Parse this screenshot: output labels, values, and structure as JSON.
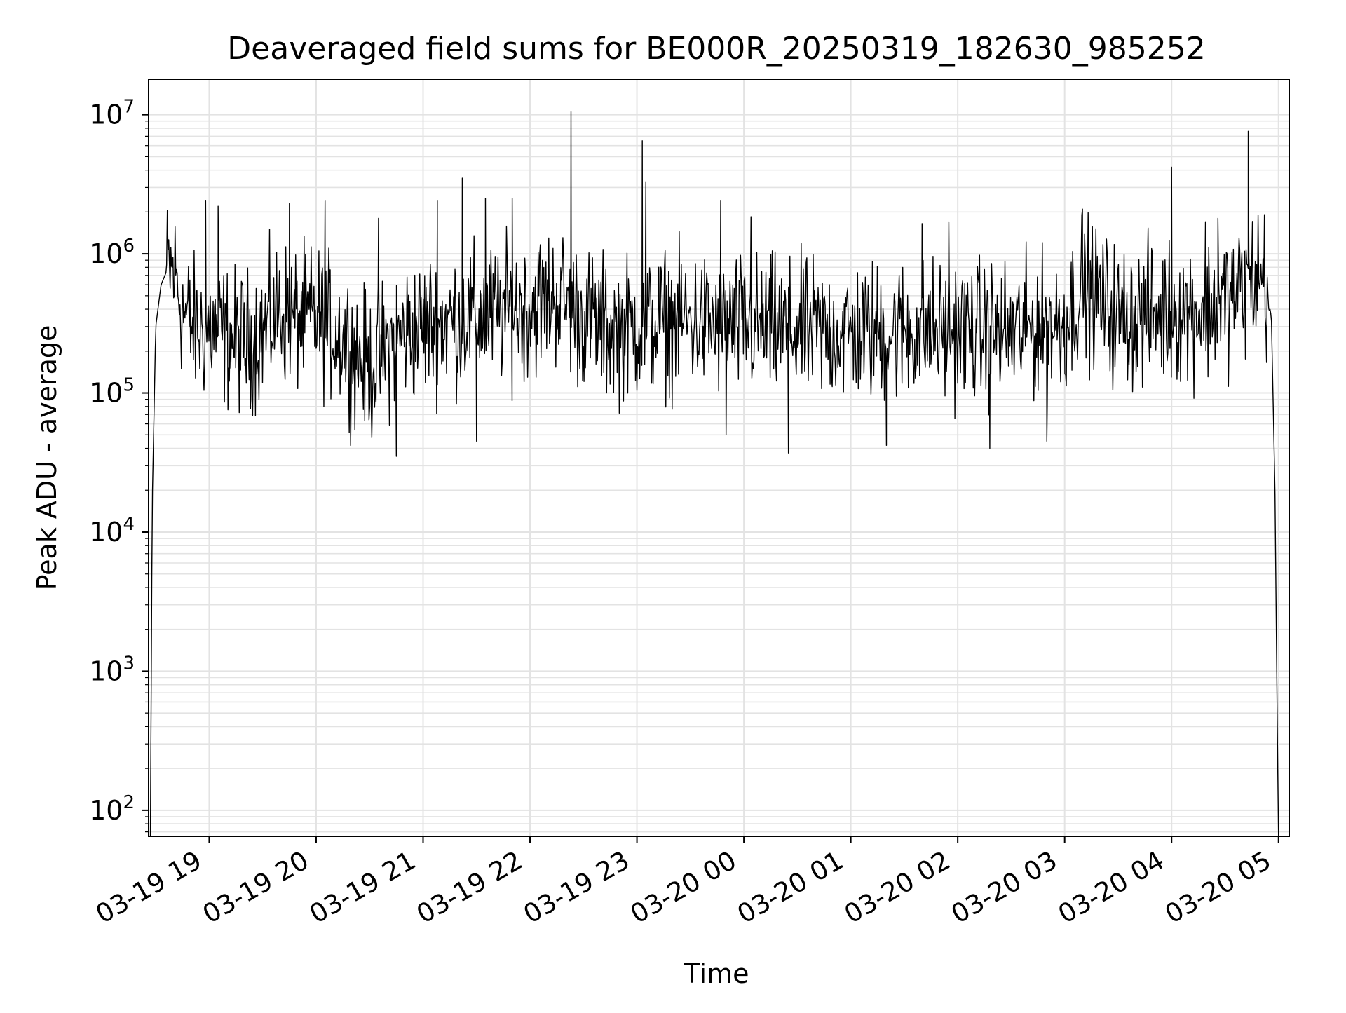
{
  "chart_data": {
    "type": "line",
    "title": "Deaveraged field sums for BE000R_20250319_182630_985252",
    "xlabel": "Time",
    "ylabel": "Peak ADU - average",
    "yscale": "log",
    "ylim": [
      65,
      18000000
    ],
    "xlim": [
      "2025-03-19 18:26",
      "2025-03-20 05:06"
    ],
    "grid": true,
    "line_color": "#000000",
    "x_ticks": [
      {
        "time": "2025-03-19 19:00",
        "label": "03-19 19"
      },
      {
        "time": "2025-03-19 20:00",
        "label": "03-19 20"
      },
      {
        "time": "2025-03-19 21:00",
        "label": "03-19 21"
      },
      {
        "time": "2025-03-19 22:00",
        "label": "03-19 22"
      },
      {
        "time": "2025-03-19 23:00",
        "label": "03-19 23"
      },
      {
        "time": "2025-03-20 00:00",
        "label": "03-20 00"
      },
      {
        "time": "2025-03-20 01:00",
        "label": "03-20 01"
      },
      {
        "time": "2025-03-20 02:00",
        "label": "03-20 02"
      },
      {
        "time": "2025-03-20 03:00",
        "label": "03-20 03"
      },
      {
        "time": "2025-03-20 04:00",
        "label": "03-20 04"
      },
      {
        "time": "2025-03-20 05:00",
        "label": "03-20 05"
      }
    ],
    "y_ticks": [
      {
        "value": 100,
        "base": "10",
        "exp": "2"
      },
      {
        "value": 1000,
        "base": "10",
        "exp": "3"
      },
      {
        "value": 10000,
        "base": "10",
        "exp": "4"
      },
      {
        "value": 100000,
        "base": "10",
        "exp": "5"
      },
      {
        "value": 1000000,
        "base": "10",
        "exp": "6"
      },
      {
        "value": 10000000,
        "base": "10",
        "exp": "7"
      }
    ],
    "series": [
      {
        "x": [
          "2025-03-19 18:27",
          "2025-03-19 18:28",
          "2025-03-19 18:30",
          "2025-03-19 18:33",
          "2025-03-19 18:37",
          "2025-03-19 18:41",
          "2025-03-19 18:45",
          "2025-03-19 18:50",
          "2025-03-19 18:55",
          "2025-03-19 19:00",
          "2025-03-19 19:10",
          "2025-03-19 19:20",
          "2025-03-19 19:30",
          "2025-03-19 19:40",
          "2025-03-19 19:50",
          "2025-03-19 20:00",
          "2025-03-19 20:15",
          "2025-03-19 20:30",
          "2025-03-19 20:45",
          "2025-03-19 21:00",
          "2025-03-19 21:15",
          "2025-03-19 21:30",
          "2025-03-19 21:45",
          "2025-03-19 22:00",
          "2025-03-19 22:15",
          "2025-03-19 22:30",
          "2025-03-19 22:45",
          "2025-03-19 23:00",
          "2025-03-19 23:15",
          "2025-03-19 23:30",
          "2025-03-19 23:45",
          "2025-03-20 00:00",
          "2025-03-20 00:30",
          "2025-03-20 01:00",
          "2025-03-20 01:30",
          "2025-03-20 02:00",
          "2025-03-20 02:30",
          "2025-03-20 03:00",
          "2025-03-20 03:10",
          "2025-03-20 03:30",
          "2025-03-20 04:00",
          "2025-03-20 04:20",
          "2025-03-20 04:35",
          "2025-03-20 04:45",
          "2025-03-20 04:52",
          "2025-03-20 04:56",
          "2025-03-20 04:58",
          "2025-03-20 04:59",
          "2025-03-20 05:00"
        ],
        "y": [
          60,
          15000,
          300000,
          600000,
          800000,
          700000,
          400000,
          300000,
          280000,
          300000,
          250000,
          230000,
          280000,
          400000,
          330000,
          350000,
          250000,
          150000,
          250000,
          300000,
          330000,
          350000,
          380000,
          420000,
          500000,
          350000,
          280000,
          300000,
          320000,
          330000,
          300000,
          300000,
          280000,
          270000,
          280000,
          280000,
          270000,
          320000,
          600000,
          350000,
          380000,
          400000,
          500000,
          650000,
          700000,
          350000,
          20000,
          1000,
          60
        ]
      }
    ],
    "spikes": {
      "x": [
        "2025-03-19 18:58",
        "2025-03-19 19:05",
        "2025-03-19 19:45",
        "2025-03-19 20:05",
        "2025-03-19 20:35",
        "2025-03-19 21:08",
        "2025-03-19 21:22",
        "2025-03-19 21:35",
        "2025-03-19 21:50",
        "2025-03-19 22:23",
        "2025-03-19 23:03",
        "2025-03-19 23:05",
        "2025-03-19 23:47",
        "2025-03-20 00:04",
        "2025-03-20 01:40",
        "2025-03-20 01:55",
        "2025-03-20 03:10",
        "2025-03-20 04:00",
        "2025-03-20 04:19",
        "2025-03-20 04:26",
        "2025-03-20 04:43",
        "2025-03-19 20:45",
        "2025-03-19 21:30",
        "2025-03-19 23:50",
        "2025-03-20 00:25",
        "2025-03-20 01:20",
        "2025-03-20 02:18",
        "2025-03-20 02:50"
      ],
      "y": [
        2400000,
        2200000,
        2300000,
        2400000,
        1800000,
        2400000,
        3500000,
        2500000,
        2500000,
        10500000,
        6500000,
        3300000,
        2400000,
        1850000,
        1650000,
        1700000,
        2100000,
        4200000,
        1700000,
        1800000,
        7600000,
        35000,
        45000,
        50000,
        37000,
        42000,
        40000,
        45000
      ]
    }
  }
}
